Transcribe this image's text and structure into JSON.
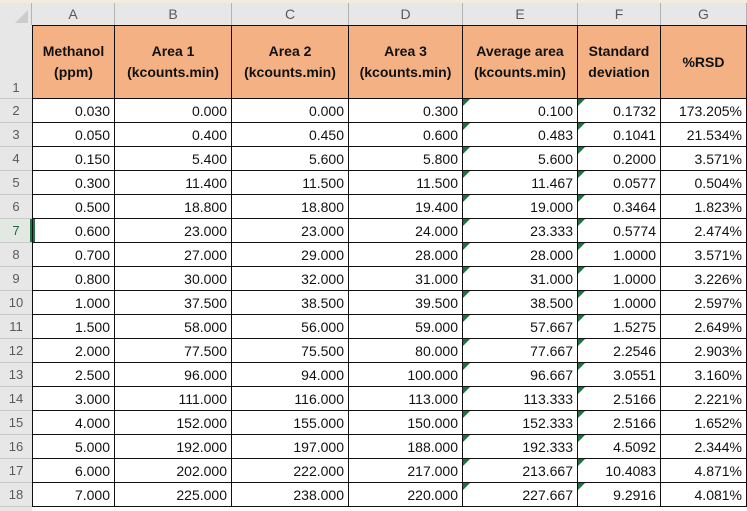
{
  "window": {
    "top_strip_color": "#f0edde"
  },
  "grid": {
    "column_letters": [
      "A",
      "B",
      "C",
      "D",
      "E",
      "F",
      "G"
    ],
    "row_numbers": [
      1,
      2,
      3,
      4,
      5,
      6,
      7,
      8,
      9,
      10,
      11,
      12,
      13,
      14,
      15,
      16,
      17,
      18
    ]
  },
  "table": {
    "headers": [
      {
        "id": "methanol",
        "line1": "Methanol",
        "line2": "(ppm)"
      },
      {
        "id": "area1",
        "line1": "Area 1",
        "line2": "(kcounts.min)"
      },
      {
        "id": "area2",
        "line1": "Area 2",
        "line2": "(kcounts.min)"
      },
      {
        "id": "area3",
        "line1": "Area 3",
        "line2": "(kcounts.min)"
      },
      {
        "id": "average-area",
        "line1": "Average area",
        "line2": "(kcounts.min)"
      },
      {
        "id": "standard-deviation",
        "line1": "Standard",
        "line2": "deviation"
      },
      {
        "id": "rsd",
        "line1": "%RSD",
        "line2": ""
      }
    ],
    "rows": [
      [
        "0.030",
        "0.000",
        "0.000",
        "0.300",
        "0.100",
        "0.1732",
        "173.205%"
      ],
      [
        "0.050",
        "0.400",
        "0.450",
        "0.600",
        "0.483",
        "0.1041",
        "21.534%"
      ],
      [
        "0.150",
        "5.400",
        "5.600",
        "5.800",
        "5.600",
        "0.2000",
        "3.571%"
      ],
      [
        "0.300",
        "11.400",
        "11.500",
        "11.500",
        "11.467",
        "0.0577",
        "0.504%"
      ],
      [
        "0.500",
        "18.800",
        "18.800",
        "19.400",
        "19.000",
        "0.3464",
        "1.823%"
      ],
      [
        "0.600",
        "23.000",
        "23.000",
        "24.000",
        "23.333",
        "0.5774",
        "2.474%"
      ],
      [
        "0.700",
        "27.000",
        "29.000",
        "28.000",
        "28.000",
        "1.0000",
        "3.571%"
      ],
      [
        "0.800",
        "30.000",
        "32.000",
        "31.000",
        "31.000",
        "1.0000",
        "3.226%"
      ],
      [
        "1.000",
        "37.500",
        "38.500",
        "39.500",
        "38.500",
        "1.0000",
        "2.597%"
      ],
      [
        "1.500",
        "58.000",
        "56.000",
        "59.000",
        "57.667",
        "1.5275",
        "2.649%"
      ],
      [
        "2.000",
        "77.500",
        "75.500",
        "80.000",
        "77.667",
        "2.2546",
        "2.903%"
      ],
      [
        "2.500",
        "96.000",
        "94.000",
        "100.000",
        "96.667",
        "3.0551",
        "3.160%"
      ],
      [
        "3.000",
        "111.000",
        "116.000",
        "113.000",
        "113.333",
        "2.5166",
        "2.221%"
      ],
      [
        "4.000",
        "152.000",
        "155.000",
        "150.000",
        "152.333",
        "2.5166",
        "1.652%"
      ],
      [
        "5.000",
        "192.000",
        "197.000",
        "188.000",
        "192.333",
        "4.5092",
        "2.344%"
      ],
      [
        "6.000",
        "202.000",
        "222.000",
        "217.000",
        "213.667",
        "10.4083",
        "4.871%"
      ],
      [
        "7.000",
        "225.000",
        "238.000",
        "220.000",
        "227.667",
        "9.2916",
        "4.081%"
      ]
    ]
  },
  "error_indicators": {
    "icon": "green-corner-triangle",
    "color": "#1e7145",
    "column_indices": [
      4,
      5
    ]
  },
  "selection": {
    "cell": "A7",
    "row_number": 7,
    "column_letter": "A",
    "accent_color": "#217346"
  },
  "colors": {
    "header_fill": "#f4b183",
    "grid_header_bg": "#e7e7e7",
    "cell_border": "#111111",
    "grid_header_text": "#5a5a5a"
  }
}
